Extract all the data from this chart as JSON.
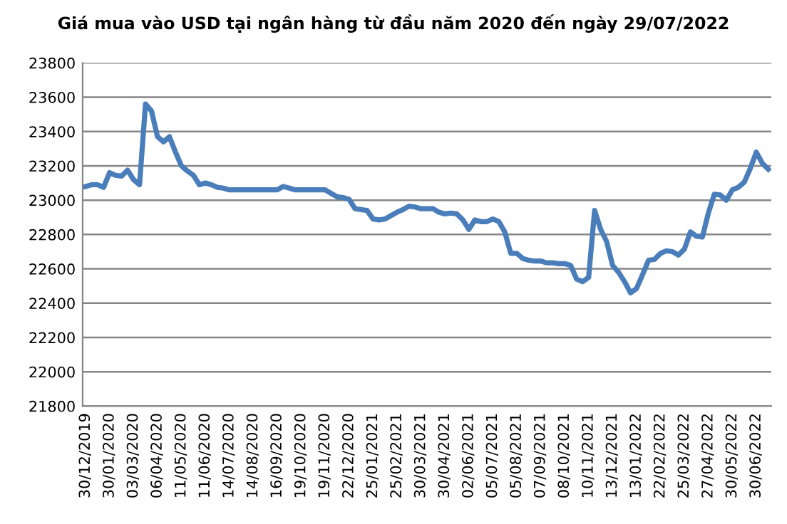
{
  "chart_data": {
    "type": "line",
    "title": "Giá mua vào USD tại ngân hàng từ đầu năm 2020 đến ngày 29/07/2022",
    "categories": [
      "30/12/2019",
      null,
      null,
      null,
      "30/01/2020",
      null,
      null,
      null,
      "03/03/2020",
      null,
      null,
      null,
      "06/04/2020",
      null,
      null,
      null,
      "11/05/2020",
      null,
      null,
      null,
      "11/06/2020",
      null,
      null,
      null,
      "14/07/2020",
      null,
      null,
      null,
      "14/08/2020",
      null,
      null,
      null,
      "16/09/2020",
      null,
      null,
      null,
      "19/10/2020",
      null,
      null,
      null,
      "19/11/2020",
      null,
      null,
      null,
      "22/12/2020",
      null,
      null,
      null,
      "25/01/2021",
      null,
      null,
      null,
      "25/02/2021",
      null,
      null,
      null,
      "30/03/2021",
      null,
      null,
      null,
      "30/04/2021",
      null,
      null,
      null,
      "02/06/2021",
      null,
      null,
      null,
      "05/07/2021",
      null,
      null,
      null,
      "05/08/2021",
      null,
      null,
      null,
      "07/09/2021",
      null,
      null,
      null,
      "08/10/2021",
      null,
      null,
      null,
      "10/11/2021",
      null,
      null,
      null,
      "13/12/2021",
      null,
      null,
      null,
      "13/01/2022",
      null,
      null,
      null,
      "22/02/2022",
      null,
      null,
      null,
      "25/03/2022",
      null,
      null,
      null,
      "27/04/2022",
      null,
      null,
      null,
      "30/05/2022",
      null,
      null,
      null,
      "30/06/2022",
      null,
      null
    ],
    "series": [
      {
        "color": "#4a7ebb",
        "values": [
          23080,
          23090,
          23090,
          23075,
          23160,
          23145,
          23140,
          23175,
          23120,
          23090,
          23560,
          23520,
          23370,
          23340,
          23370,
          23280,
          23200,
          23170,
          23145,
          23090,
          23100,
          23090,
          23075,
          23070,
          23060,
          23060,
          23060,
          23060,
          23060,
          23060,
          23060,
          23060,
          23060,
          23080,
          23070,
          23060,
          23060,
          23060,
          23060,
          23060,
          23060,
          23040,
          23020,
          23015,
          23005,
          22950,
          22945,
          22940,
          22890,
          22885,
          22890,
          22910,
          22930,
          22945,
          22965,
          22960,
          22950,
          22950,
          22950,
          22930,
          22920,
          22925,
          22920,
          22885,
          22830,
          22885,
          22875,
          22875,
          22890,
          22875,
          22815,
          22690,
          22690,
          22660,
          22650,
          22645,
          22645,
          22635,
          22635,
          22630,
          22630,
          22620,
          22540,
          22525,
          22550,
          22940,
          22830,
          22760,
          22620,
          22580,
          22525,
          22460,
          22485,
          22565,
          22650,
          22655,
          22690,
          22705,
          22700,
          22680,
          22715,
          22815,
          22790,
          22785,
          22925,
          23035,
          23030,
          23000,
          23060,
          23075,
          23105,
          23185,
          23280,
          23215,
          23180
        ]
      }
    ],
    "ylim": [
      21800,
      23800
    ],
    "yticks": [
      21800,
      22000,
      22200,
      22400,
      22600,
      22800,
      23000,
      23200,
      23400,
      23600,
      23800
    ],
    "grid": "y",
    "legend": false,
    "marker": "none",
    "line_style": "solid"
  }
}
